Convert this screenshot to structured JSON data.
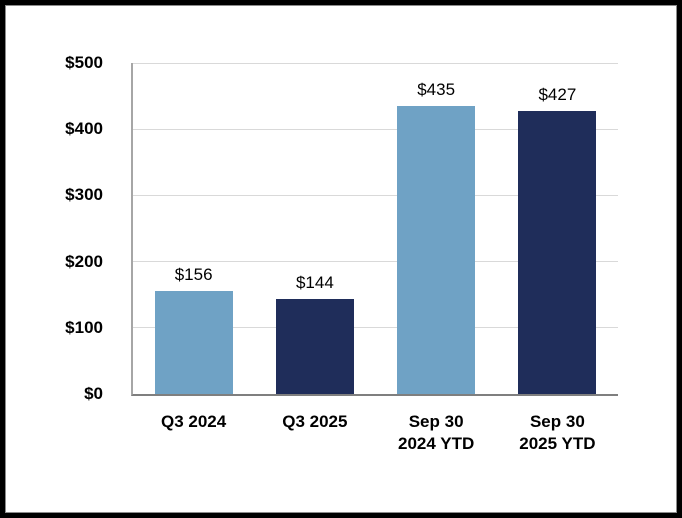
{
  "chart_data": {
    "type": "bar",
    "categories": [
      "Q3 2024",
      "Q3 2025",
      "Sep 30\n2024 YTD",
      "Sep 30\n2025 YTD"
    ],
    "values": [
      156,
      144,
      435,
      427
    ],
    "value_labels": [
      "$156",
      "$144",
      "$435",
      "$427"
    ],
    "bar_colors": [
      "#6FA2C5",
      "#1F2D5A",
      "#6FA2C5",
      "#1F2D5A"
    ],
    "ylim": [
      0,
      500
    ],
    "yticks": [
      0,
      100,
      200,
      300,
      400,
      500
    ],
    "ytick_labels": [
      "$0",
      "$100",
      "$200",
      "$300",
      "$400",
      "$500"
    ],
    "grid": true,
    "legend": false,
    "colors": {
      "light_blue": "#6FA2C5",
      "dark_navy": "#1F2D5A",
      "gridline": "#D9D9D9",
      "y_axis_line": "#A6A6A6",
      "x_axis_line": "#7F7F7F",
      "frame_border": "#000000",
      "background": "#FFFFFF",
      "text": "#000000"
    }
  }
}
